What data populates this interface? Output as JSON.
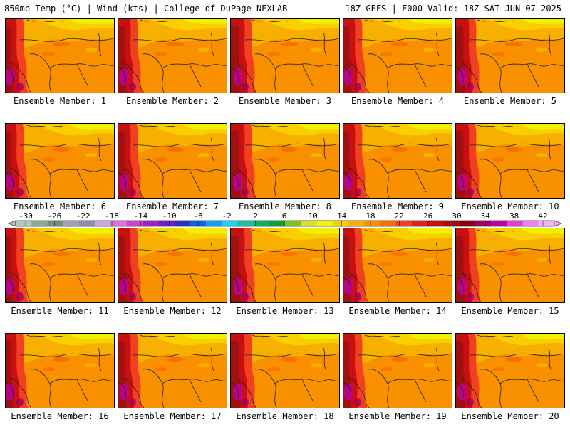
{
  "header": {
    "left": "850mb Temp (°C) | Wind (kts) | College of DuPage NEXLAB",
    "right": "18Z GEFS | F000 Valid: 18Z SAT JUN 07 2025"
  },
  "members": [
    {
      "label": "Ensemble Member: 1"
    },
    {
      "label": "Ensemble Member: 2"
    },
    {
      "label": "Ensemble Member: 3"
    },
    {
      "label": "Ensemble Member: 4"
    },
    {
      "label": "Ensemble Member: 5"
    },
    {
      "label": "Ensemble Member: 6"
    },
    {
      "label": "Ensemble Member: 7"
    },
    {
      "label": "Ensemble Member: 8"
    },
    {
      "label": "Ensemble Member: 9"
    },
    {
      "label": "Ensemble Member: 10"
    },
    {
      "label": "Ensemble Member: 11"
    },
    {
      "label": "Ensemble Member: 12"
    },
    {
      "label": "Ensemble Member: 13"
    },
    {
      "label": "Ensemble Member: 14"
    },
    {
      "label": "Ensemble Member: 15"
    },
    {
      "label": "Ensemble Member: 16"
    },
    {
      "label": "Ensemble Member: 17"
    },
    {
      "label": "Ensemble Member: 18"
    },
    {
      "label": "Ensemble Member: 19"
    },
    {
      "label": "Ensemble Member: 20"
    }
  ],
  "colorbar": {
    "tick_labels": [
      "-30",
      "-26",
      "-22",
      "-18",
      "-14",
      "-10",
      "-6",
      "-2",
      "2",
      "6",
      "10",
      "14",
      "18",
      "22",
      "26",
      "30",
      "34",
      "38",
      "42"
    ],
    "colors": [
      "#b8c8b8",
      "#90a890",
      "#789078",
      "#a0a0b8",
      "#8c8cb0",
      "#c8a8e0",
      "#e070e0",
      "#d040d0",
      "#a020c8",
      "#7020c0",
      "#3030c0",
      "#1060e0",
      "#10a0f0",
      "#20d0f0",
      "#20c0a0",
      "#10b060",
      "#10a030",
      "#80c020",
      "#d8e020",
      "#f8f000",
      "#f8d000",
      "#f8b000",
      "#f89000",
      "#f87000",
      "#f04020",
      "#e02020",
      "#c81010",
      "#a01010",
      "#800010",
      "#a00060",
      "#c000a0",
      "#e040d0",
      "#f080f0",
      "#f8b0f8"
    ]
  }
}
